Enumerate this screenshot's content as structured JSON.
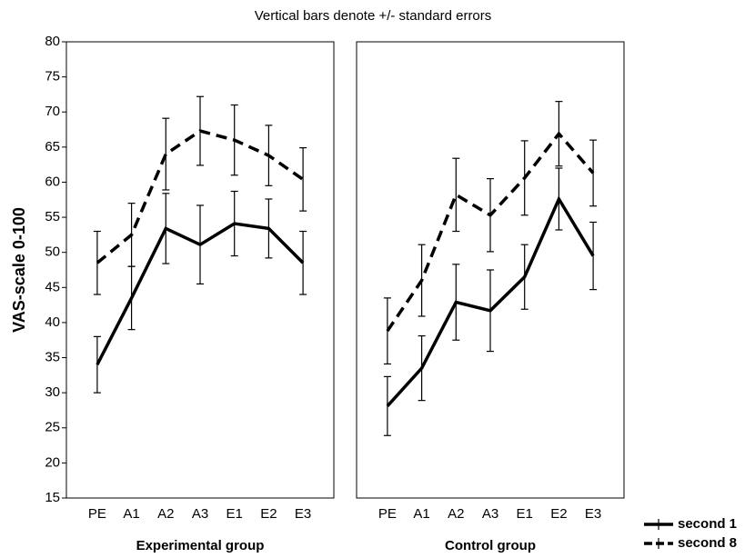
{
  "title": "Vertical bars denote +/- standard errors",
  "ylabel": "VAS-scale 0-100",
  "chart_data": [
    {
      "type": "line",
      "xlabel": "Experimental group",
      "categories": [
        "PE",
        "A1",
        "A2",
        "A3",
        "E1",
        "E2",
        "E3"
      ],
      "ylim": [
        15,
        80
      ],
      "yticks": [
        15,
        20,
        25,
        30,
        35,
        40,
        45,
        50,
        55,
        60,
        65,
        70,
        75,
        80
      ],
      "series": [
        {
          "name": "second 1",
          "color": "#000000",
          "line_style": "solid",
          "values": [
            34.0,
            43.5,
            53.4,
            51.1,
            54.1,
            53.4,
            48.5
          ],
          "errors": [
            4.0,
            4.5,
            5.0,
            5.6,
            4.6,
            4.2,
            4.5
          ]
        },
        {
          "name": "second 8",
          "color": "#000000",
          "line_style": "dashed",
          "values": [
            48.5,
            52.5,
            64.0,
            67.3,
            66.0,
            63.8,
            60.4
          ],
          "errors": [
            4.5,
            4.5,
            5.1,
            4.9,
            5.0,
            4.3,
            4.5
          ]
        }
      ]
    },
    {
      "type": "line",
      "xlabel": "Control group",
      "categories": [
        "PE",
        "A1",
        "A2",
        "A3",
        "E1",
        "E2",
        "E3"
      ],
      "ylim": [
        15,
        80
      ],
      "series": [
        {
          "name": "second 1",
          "color": "#000000",
          "line_style": "solid",
          "values": [
            28.1,
            33.5,
            42.9,
            41.7,
            46.5,
            57.6,
            49.5
          ],
          "errors": [
            4.2,
            4.6,
            5.4,
            5.8,
            4.6,
            4.4,
            4.8
          ]
        },
        {
          "name": "second 8",
          "color": "#000000",
          "line_style": "dashed",
          "values": [
            38.8,
            46.0,
            58.2,
            55.3,
            60.6,
            66.9,
            61.3
          ],
          "errors": [
            4.7,
            5.1,
            5.2,
            5.2,
            5.3,
            4.6,
            4.7
          ]
        }
      ]
    }
  ]
}
